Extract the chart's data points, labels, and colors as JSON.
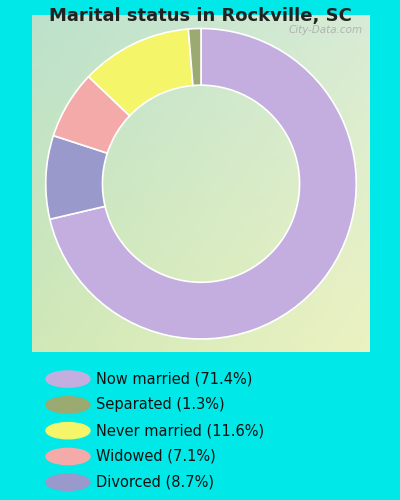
{
  "title": "Marital status in Rockville, SC",
  "slices": [
    71.4,
    1.3,
    11.6,
    7.1,
    8.7
  ],
  "labels": [
    "Now married (71.4%)",
    "Separated (1.3%)",
    "Never married (11.6%)",
    "Widowed (7.1%)",
    "Divorced (8.7%)"
  ],
  "colors": [
    "#c4aee0",
    "#9aaa70",
    "#f5f56a",
    "#f5aaaa",
    "#9999cc"
  ],
  "wedge_order_indices": [
    0,
    4,
    3,
    2,
    1
  ],
  "bg_outer": "#00e8e8",
  "title_fontsize": 13,
  "legend_fontsize": 10.5,
  "watermark": "City-Data.com",
  "donut_width": 0.42,
  "start_angle": 90
}
